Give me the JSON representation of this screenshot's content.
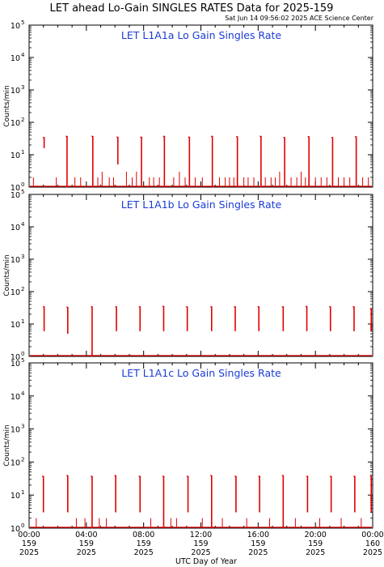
{
  "header": {
    "title": "LET ahead Lo-Gain SINGLES RATES Data for 2025-159",
    "timestamp": "Sat Jun 14 09:56:02 2025 ACE Science Center"
  },
  "colors": {
    "data": "#e00000",
    "panel_title": "#1a3cd6",
    "axes": "#000000"
  },
  "xaxis": {
    "label": "UTC Day of Year",
    "ticks": [
      {
        "time": "00:00",
        "day": "159",
        "year": "2025",
        "hour": 0
      },
      {
        "time": "04:00",
        "day": "159",
        "year": "2025",
        "hour": 4
      },
      {
        "time": "08:00",
        "day": "159",
        "year": "2025",
        "hour": 8
      },
      {
        "time": "12:00",
        "day": "159",
        "year": "2025",
        "hour": 12
      },
      {
        "time": "16:00",
        "day": "159",
        "year": "2025",
        "hour": 16
      },
      {
        "time": "20:00",
        "day": "159",
        "year": "2025",
        "hour": 20
      },
      {
        "time": "00:00",
        "day": "160",
        "year": "2025",
        "hour": 24
      }
    ]
  },
  "chart_data": [
    {
      "type": "line",
      "title": "LET L1A1a Lo Gain Singles Rate",
      "xlabel": "UTC Day of Year",
      "ylabel": "Counts/min",
      "yscale": "log",
      "xlim": [
        0,
        24
      ],
      "ylim": [
        1,
        100000
      ],
      "yticks": [
        {
          "base": "10",
          "exp": "0"
        },
        {
          "base": "10",
          "exp": "1"
        },
        {
          "base": "10",
          "exp": "2"
        },
        {
          "base": "10",
          "exp": "3"
        },
        {
          "base": "10",
          "exp": "4"
        },
        {
          "base": "10",
          "exp": "5"
        }
      ],
      "bursts": [
        {
          "x": 1.05,
          "peak": 35,
          "low": 16
        },
        {
          "x": 2.65,
          "peak": 38,
          "low": 1
        },
        {
          "x": 4.45,
          "peak": 38,
          "low": 1
        },
        {
          "x": 6.2,
          "peak": 36,
          "low": 5
        },
        {
          "x": 7.85,
          "peak": 36,
          "low": 1
        },
        {
          "x": 9.45,
          "peak": 38,
          "low": 1
        },
        {
          "x": 11.2,
          "peak": 36,
          "low": 1
        },
        {
          "x": 12.8,
          "peak": 38,
          "low": 1
        },
        {
          "x": 14.55,
          "peak": 37,
          "low": 1
        },
        {
          "x": 16.2,
          "peak": 38,
          "low": 1
        },
        {
          "x": 17.85,
          "peak": 35,
          "low": 1
        },
        {
          "x": 19.55,
          "peak": 37,
          "low": 1
        },
        {
          "x": 21.2,
          "peak": 35,
          "low": 1
        },
        {
          "x": 22.85,
          "peak": 37,
          "low": 1
        }
      ],
      "spikes": [
        {
          "x": 0.3,
          "y": 2
        },
        {
          "x": 1.9,
          "y": 2
        },
        {
          "x": 3.2,
          "y": 2
        },
        {
          "x": 3.6,
          "y": 2
        },
        {
          "x": 4.8,
          "y": 2
        },
        {
          "x": 5.1,
          "y": 3
        },
        {
          "x": 5.6,
          "y": 2
        },
        {
          "x": 5.9,
          "y": 2
        },
        {
          "x": 6.8,
          "y": 3
        },
        {
          "x": 7.2,
          "y": 2
        },
        {
          "x": 7.5,
          "y": 3
        },
        {
          "x": 8.4,
          "y": 2
        },
        {
          "x": 8.7,
          "y": 2
        },
        {
          "x": 9.1,
          "y": 2
        },
        {
          "x": 10.1,
          "y": 2
        },
        {
          "x": 10.5,
          "y": 3
        },
        {
          "x": 10.9,
          "y": 2
        },
        {
          "x": 11.6,
          "y": 2
        },
        {
          "x": 12.1,
          "y": 2
        },
        {
          "x": 13.3,
          "y": 2
        },
        {
          "x": 13.7,
          "y": 2
        },
        {
          "x": 14.0,
          "y": 2
        },
        {
          "x": 14.3,
          "y": 2
        },
        {
          "x": 15.0,
          "y": 2
        },
        {
          "x": 15.3,
          "y": 2
        },
        {
          "x": 15.7,
          "y": 2
        },
        {
          "x": 16.5,
          "y": 2
        },
        {
          "x": 16.9,
          "y": 2
        },
        {
          "x": 17.2,
          "y": 2
        },
        {
          "x": 17.5,
          "y": 3
        },
        {
          "x": 18.3,
          "y": 2
        },
        {
          "x": 18.7,
          "y": 2
        },
        {
          "x": 19.0,
          "y": 3
        },
        {
          "x": 19.3,
          "y": 2
        },
        {
          "x": 20.0,
          "y": 2
        },
        {
          "x": 20.4,
          "y": 2
        },
        {
          "x": 20.8,
          "y": 2
        },
        {
          "x": 21.6,
          "y": 2
        },
        {
          "x": 22.0,
          "y": 2
        },
        {
          "x": 22.4,
          "y": 2
        },
        {
          "x": 23.3,
          "y": 2
        },
        {
          "x": 23.7,
          "y": 2
        }
      ],
      "baseline": 1
    },
    {
      "type": "line",
      "title": "LET L1A1b Lo Gain Singles Rate",
      "xlabel": "UTC Day of Year",
      "ylabel": "Counts/min",
      "yscale": "log",
      "xlim": [
        0,
        24
      ],
      "ylim": [
        1,
        100000
      ],
      "yticks": [
        {
          "base": "10",
          "exp": "0"
        },
        {
          "base": "10",
          "exp": "1"
        },
        {
          "base": "10",
          "exp": "2"
        },
        {
          "base": "10",
          "exp": "3"
        },
        {
          "base": "10",
          "exp": "4"
        },
        {
          "base": "10",
          "exp": "5"
        }
      ],
      "bursts": [
        {
          "x": 1.05,
          "peak": 35,
          "low": 6
        },
        {
          "x": 2.7,
          "peak": 34,
          "low": 5
        },
        {
          "x": 4.4,
          "peak": 35,
          "low": 1
        },
        {
          "x": 6.1,
          "peak": 35,
          "low": 6
        },
        {
          "x": 7.75,
          "peak": 35,
          "low": 6
        },
        {
          "x": 9.4,
          "peak": 36,
          "low": 6
        },
        {
          "x": 11.05,
          "peak": 35,
          "low": 6
        },
        {
          "x": 12.75,
          "peak": 35,
          "low": 6
        },
        {
          "x": 14.4,
          "peak": 35,
          "low": 6
        },
        {
          "x": 16.05,
          "peak": 35,
          "low": 6
        },
        {
          "x": 17.75,
          "peak": 35,
          "low": 6
        },
        {
          "x": 19.4,
          "peak": 36,
          "low": 6
        },
        {
          "x": 21.05,
          "peak": 35,
          "low": 6
        },
        {
          "x": 22.7,
          "peak": 35,
          "low": 6
        },
        {
          "x": 23.9,
          "peak": 30,
          "low": 6
        }
      ],
      "spikes": [],
      "baseline": 1
    },
    {
      "type": "line",
      "title": "LET L1A1c Lo Gain Singles Rate",
      "xlabel": "UTC Day of Year",
      "ylabel": "Counts/min",
      "yscale": "log",
      "xlim": [
        0,
        24
      ],
      "ylim": [
        1,
        100000
      ],
      "yticks": [
        {
          "base": "10",
          "exp": "0"
        },
        {
          "base": "10",
          "exp": "1"
        },
        {
          "base": "10",
          "exp": "2"
        },
        {
          "base": "10",
          "exp": "3"
        },
        {
          "base": "10",
          "exp": "4"
        },
        {
          "base": "10",
          "exp": "5"
        }
      ],
      "bursts": [
        {
          "x": 1.0,
          "peak": 38,
          "low": 3
        },
        {
          "x": 2.7,
          "peak": 40,
          "low": 3
        },
        {
          "x": 4.4,
          "peak": 38,
          "low": 1
        },
        {
          "x": 6.05,
          "peak": 40,
          "low": 3
        },
        {
          "x": 7.75,
          "peak": 38,
          "low": 3
        },
        {
          "x": 9.4,
          "peak": 38,
          "low": 1
        },
        {
          "x": 11.1,
          "peak": 38,
          "low": 3
        },
        {
          "x": 12.75,
          "peak": 40,
          "low": 1
        },
        {
          "x": 14.45,
          "peak": 38,
          "low": 3
        },
        {
          "x": 16.1,
          "peak": 38,
          "low": 3
        },
        {
          "x": 17.75,
          "peak": 40,
          "low": 1
        },
        {
          "x": 19.45,
          "peak": 38,
          "low": 3
        },
        {
          "x": 21.1,
          "peak": 38,
          "low": 3
        },
        {
          "x": 22.75,
          "peak": 38,
          "low": 3
        },
        {
          "x": 23.9,
          "peak": 38,
          "low": 3
        }
      ],
      "spikes": [
        {
          "x": 0.5,
          "y": 2
        },
        {
          "x": 3.3,
          "y": 2
        },
        {
          "x": 3.9,
          "y": 2
        },
        {
          "x": 4.9,
          "y": 2
        },
        {
          "x": 5.4,
          "y": 2
        },
        {
          "x": 8.5,
          "y": 2
        },
        {
          "x": 9.9,
          "y": 2
        },
        {
          "x": 10.3,
          "y": 2
        },
        {
          "x": 12.1,
          "y": 2
        },
        {
          "x": 13.5,
          "y": 2
        },
        {
          "x": 15.2,
          "y": 2
        },
        {
          "x": 16.8,
          "y": 2
        },
        {
          "x": 18.6,
          "y": 2
        },
        {
          "x": 20.3,
          "y": 2
        },
        {
          "x": 21.8,
          "y": 2
        },
        {
          "x": 23.2,
          "y": 2
        }
      ],
      "baseline": 1
    }
  ]
}
